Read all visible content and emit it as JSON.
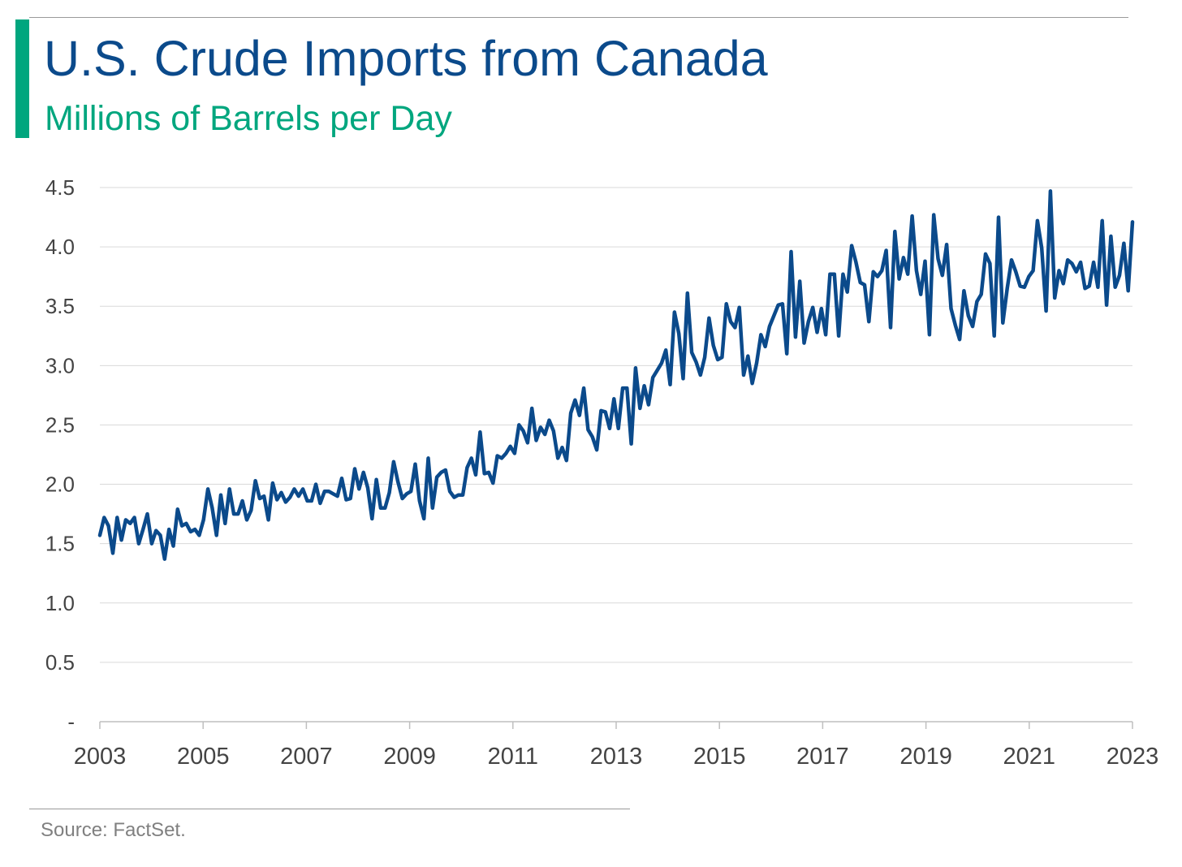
{
  "header": {
    "title": "U.S. Crude Imports from Canada",
    "subtitle": "Millions of Barrels per Day"
  },
  "footer": {
    "source": "Source: FactSet."
  },
  "colors": {
    "line": "#0b4a8b",
    "accent": "#00a67e",
    "title": "#0b4a8b",
    "grid": "#d9d9d9",
    "axis_text": "#444444"
  },
  "chart_data": {
    "type": "line",
    "title": "U.S. Crude Imports from Canada",
    "subtitle": "Millions of Barrels per Day",
    "xlabel": "",
    "ylabel": "",
    "xlim": [
      2003,
      2023
    ],
    "ylim": [
      0,
      4.5
    ],
    "x_ticks": [
      "2003",
      "2005",
      "2007",
      "2009",
      "2011",
      "2013",
      "2015",
      "2017",
      "2019",
      "2021",
      "2023"
    ],
    "y_ticks": [
      {
        "value": 0,
        "label": "-"
      },
      {
        "value": 0.5,
        "label": "0.5"
      },
      {
        "value": 1.0,
        "label": "1.0"
      },
      {
        "value": 1.5,
        "label": "1.5"
      },
      {
        "value": 2.0,
        "label": "2.0"
      },
      {
        "value": 2.5,
        "label": "2.5"
      },
      {
        "value": 3.0,
        "label": "3.0"
      },
      {
        "value": 3.5,
        "label": "3.5"
      },
      {
        "value": 4.0,
        "label": "4.0"
      },
      {
        "value": 4.5,
        "label": "4.5"
      }
    ],
    "grid": "horizontal",
    "legend": "none",
    "series": [
      {
        "frequency": "monthly",
        "start": "2003-01",
        "color": "#0b4a8b",
        "values": [
          1.57,
          1.72,
          1.65,
          1.42,
          1.72,
          1.53,
          1.7,
          1.67,
          1.72,
          1.5,
          1.62,
          1.75,
          1.5,
          1.61,
          1.57,
          1.37,
          1.62,
          1.48,
          1.79,
          1.65,
          1.67,
          1.6,
          1.62,
          1.57,
          1.7,
          1.96,
          1.8,
          1.57,
          1.91,
          1.67,
          1.96,
          1.75,
          1.75,
          1.86,
          1.7,
          1.78,
          2.03,
          1.88,
          1.9,
          1.7,
          2.01,
          1.87,
          1.93,
          1.85,
          1.89,
          1.96,
          1.9,
          1.96,
          1.86,
          1.86,
          2.0,
          1.84,
          1.94,
          1.94,
          1.92,
          1.9,
          2.05,
          1.87,
          1.88,
          2.13,
          1.96,
          2.1,
          1.97,
          1.71,
          2.04,
          1.8,
          1.8,
          1.93,
          2.19,
          2.02,
          1.88,
          1.92,
          1.94,
          2.17,
          1.86,
          1.71,
          2.22,
          1.8,
          2.06,
          2.1,
          2.12,
          1.94,
          1.89,
          1.91,
          1.91,
          2.14,
          2.22,
          2.08,
          2.44,
          2.09,
          2.1,
          2.01,
          2.24,
          2.22,
          2.26,
          2.32,
          2.26,
          2.5,
          2.45,
          2.35,
          2.64,
          2.37,
          2.48,
          2.42,
          2.54,
          2.45,
          2.22,
          2.31,
          2.2,
          2.6,
          2.71,
          2.58,
          2.81,
          2.46,
          2.4,
          2.29,
          2.62,
          2.61,
          2.47,
          2.72,
          2.47,
          2.81,
          2.81,
          2.34,
          2.98,
          2.64,
          2.83,
          2.67,
          2.9,
          2.96,
          3.02,
          3.13,
          2.84,
          3.45,
          3.27,
          2.89,
          3.61,
          3.11,
          3.03,
          2.92,
          3.07,
          3.4,
          3.17,
          3.05,
          3.07,
          3.52,
          3.37,
          3.32,
          3.49,
          2.92,
          3.08,
          2.85,
          3.02,
          3.26,
          3.16,
          3.33,
          3.42,
          3.51,
          3.52,
          3.1,
          3.96,
          3.24,
          3.71,
          3.19,
          3.37,
          3.49,
          3.28,
          3.48,
          3.26,
          3.77,
          3.77,
          3.25,
          3.77,
          3.62,
          4.01,
          3.87,
          3.7,
          3.68,
          3.37,
          3.79,
          3.75,
          3.8,
          3.97,
          3.32,
          4.13,
          3.73,
          3.91,
          3.77,
          4.26,
          3.8,
          3.6,
          3.88,
          3.26,
          4.27,
          3.9,
          3.76,
          4.02,
          3.48,
          3.34,
          3.22,
          3.63,
          3.42,
          3.33,
          3.54,
          3.6,
          3.94,
          3.86,
          3.25,
          4.25,
          3.36,
          3.65,
          3.89,
          3.79,
          3.67,
          3.66,
          3.75,
          3.8,
          4.22,
          3.99,
          3.46,
          4.47,
          3.57,
          3.8,
          3.69,
          3.89,
          3.86,
          3.79,
          3.87,
          3.65,
          3.67,
          3.87,
          3.66,
          4.22,
          3.51,
          4.09,
          3.66,
          3.76,
          4.03,
          3.63,
          4.21
        ]
      }
    ]
  }
}
